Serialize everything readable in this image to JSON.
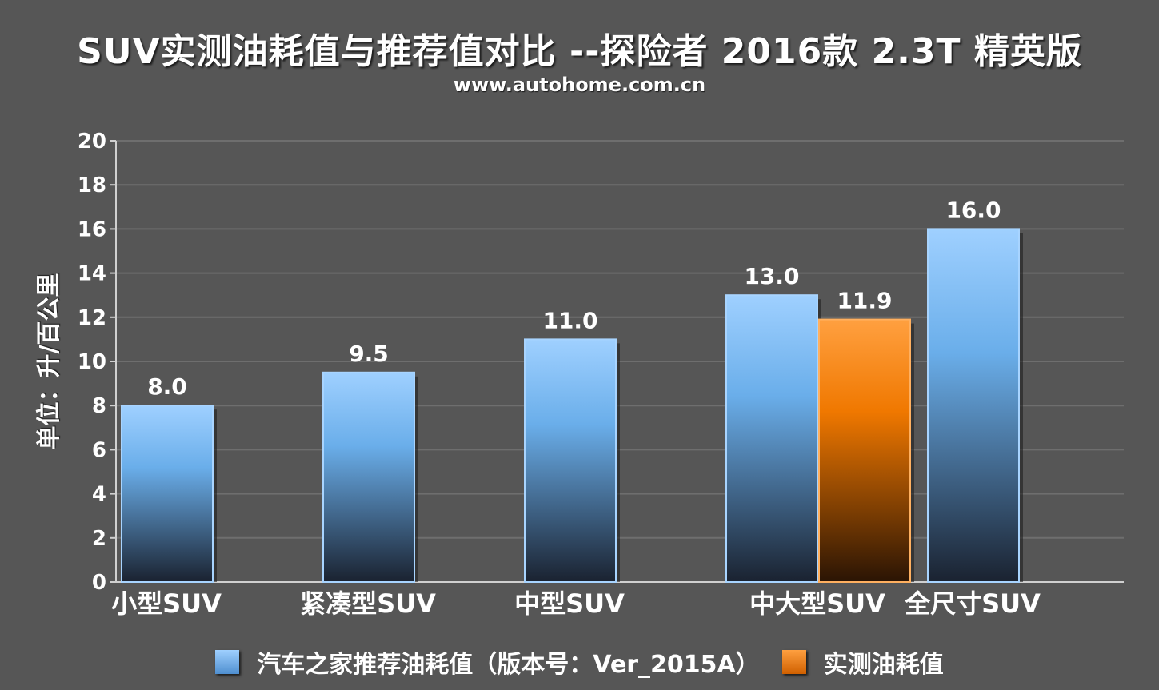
{
  "chart_data": {
    "type": "bar",
    "title": "SUV实测油耗值与推荐值对比 --探险者 2016款 2.3T 精英版",
    "subtitle": "www.autohome.com.cn",
    "ylabel": "单位：升/百公里",
    "xlabel": "",
    "ylim": [
      0,
      20
    ],
    "yticks": [
      0,
      2,
      4,
      6,
      8,
      10,
      12,
      14,
      16,
      18,
      20
    ],
    "categories": [
      "小型SUV",
      "紧凑型SUV",
      "中型SUV",
      "中大型SUV",
      "全尺寸SUV"
    ],
    "series": [
      {
        "name": "汽车之家推荐油耗值（版本号：Ver_2015A）",
        "color": "#7fbcff",
        "values": [
          8.0,
          9.5,
          11.0,
          13.0,
          16.0
        ]
      },
      {
        "name": "实测油耗值",
        "color": "#ff8a1a",
        "values": [
          null,
          null,
          null,
          11.9,
          null
        ]
      }
    ],
    "value_labels": [
      [
        "8.0",
        "9.5",
        "11.0",
        "13.0",
        "16.0"
      ],
      [
        null,
        null,
        null,
        "11.9",
        null
      ]
    ],
    "grid": true,
    "legend_position": "bottom"
  }
}
